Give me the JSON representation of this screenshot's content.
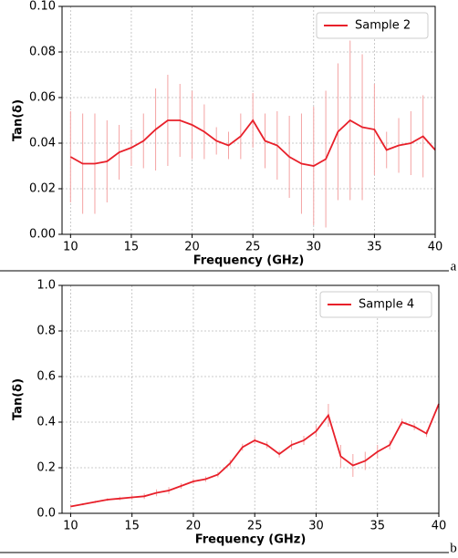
{
  "chart_data": [
    {
      "type": "line",
      "panel_label": "a",
      "xlabel": "Frequency (GHz)",
      "ylabel": "Tan(δ)",
      "x": [
        10,
        11,
        12,
        13,
        14,
        15,
        16,
        17,
        18,
        19,
        20,
        21,
        22,
        23,
        24,
        25,
        26,
        27,
        28,
        29,
        30,
        31,
        32,
        33,
        34,
        35,
        36,
        37,
        38,
        39,
        40
      ],
      "series": [
        {
          "name": "Sample 2",
          "color": "#e8202a",
          "band_color": "#f4a3a3",
          "values": [
            0.034,
            0.031,
            0.031,
            0.032,
            0.036,
            0.038,
            0.041,
            0.046,
            0.05,
            0.05,
            0.048,
            0.045,
            0.041,
            0.039,
            0.043,
            0.05,
            0.041,
            0.039,
            0.034,
            0.031,
            0.03,
            0.033,
            0.045,
            0.05,
            0.047,
            0.046,
            0.037,
            0.039,
            0.04,
            0.043,
            0.037
          ],
          "errors": [
            0.02,
            0.022,
            0.022,
            0.018,
            0.012,
            0.008,
            0.012,
            0.018,
            0.02,
            0.016,
            0.015,
            0.012,
            0.006,
            0.006,
            0.01,
            0.012,
            0.012,
            0.015,
            0.018,
            0.022,
            0.026,
            0.03,
            0.03,
            0.035,
            0.032,
            0.02,
            0.008,
            0.012,
            0.014,
            0.018,
            0.02
          ]
        }
      ],
      "xlim": [
        9.3,
        40
      ],
      "xticks": [
        10,
        15,
        20,
        25,
        30,
        35,
        40
      ],
      "ylim": [
        0,
        0.1
      ],
      "yticks": [
        {
          "value": 0,
          "label": "0.00"
        },
        0.02,
        0.04,
        0.06,
        0.08,
        {
          "value": 0.1,
          "label": "0.10"
        }
      ],
      "grid": true,
      "legend": "upper right"
    },
    {
      "type": "line",
      "panel_label": "b",
      "xlabel": "Frequency (GHz)",
      "ylabel": "Tan(δ)",
      "x": [
        10,
        11,
        12,
        13,
        14,
        15,
        16,
        17,
        18,
        19,
        20,
        21,
        22,
        23,
        24,
        25,
        26,
        27,
        28,
        29,
        30,
        31,
        32,
        33,
        34,
        35,
        36,
        37,
        38,
        39,
        40
      ],
      "series": [
        {
          "name": "Sample 4",
          "color": "#e8202a",
          "band_color": "#f4a3a3",
          "values": [
            0.03,
            0.04,
            0.05,
            0.06,
            0.065,
            0.07,
            0.075,
            0.09,
            0.1,
            0.12,
            0.14,
            0.15,
            0.17,
            0.22,
            0.29,
            0.32,
            0.3,
            0.26,
            0.3,
            0.32,
            0.36,
            0.43,
            0.25,
            0.21,
            0.23,
            0.27,
            0.3,
            0.4,
            0.38,
            0.35,
            0.48
          ],
          "errors": [
            0.005,
            0.005,
            0.005,
            0.006,
            0.008,
            0.01,
            0.012,
            0.015,
            0.015,
            0.012,
            0.012,
            0.012,
            0.012,
            0.015,
            0.015,
            0.015,
            0.015,
            0.015,
            0.02,
            0.02,
            0.025,
            0.05,
            0.05,
            0.05,
            0.04,
            0.03,
            0.02,
            0.015,
            0.015,
            0.015,
            0.01
          ]
        }
      ],
      "xlim": [
        9.3,
        40
      ],
      "xticks": [
        10,
        15,
        20,
        25,
        30,
        35,
        40
      ],
      "ylim": [
        0,
        1
      ],
      "yticks": [
        {
          "value": 0,
          "label": "0.0"
        },
        0.2,
        0.4,
        0.6,
        0.8,
        {
          "value": 1,
          "label": "1.0"
        }
      ],
      "grid": true,
      "legend": "upper right"
    }
  ]
}
